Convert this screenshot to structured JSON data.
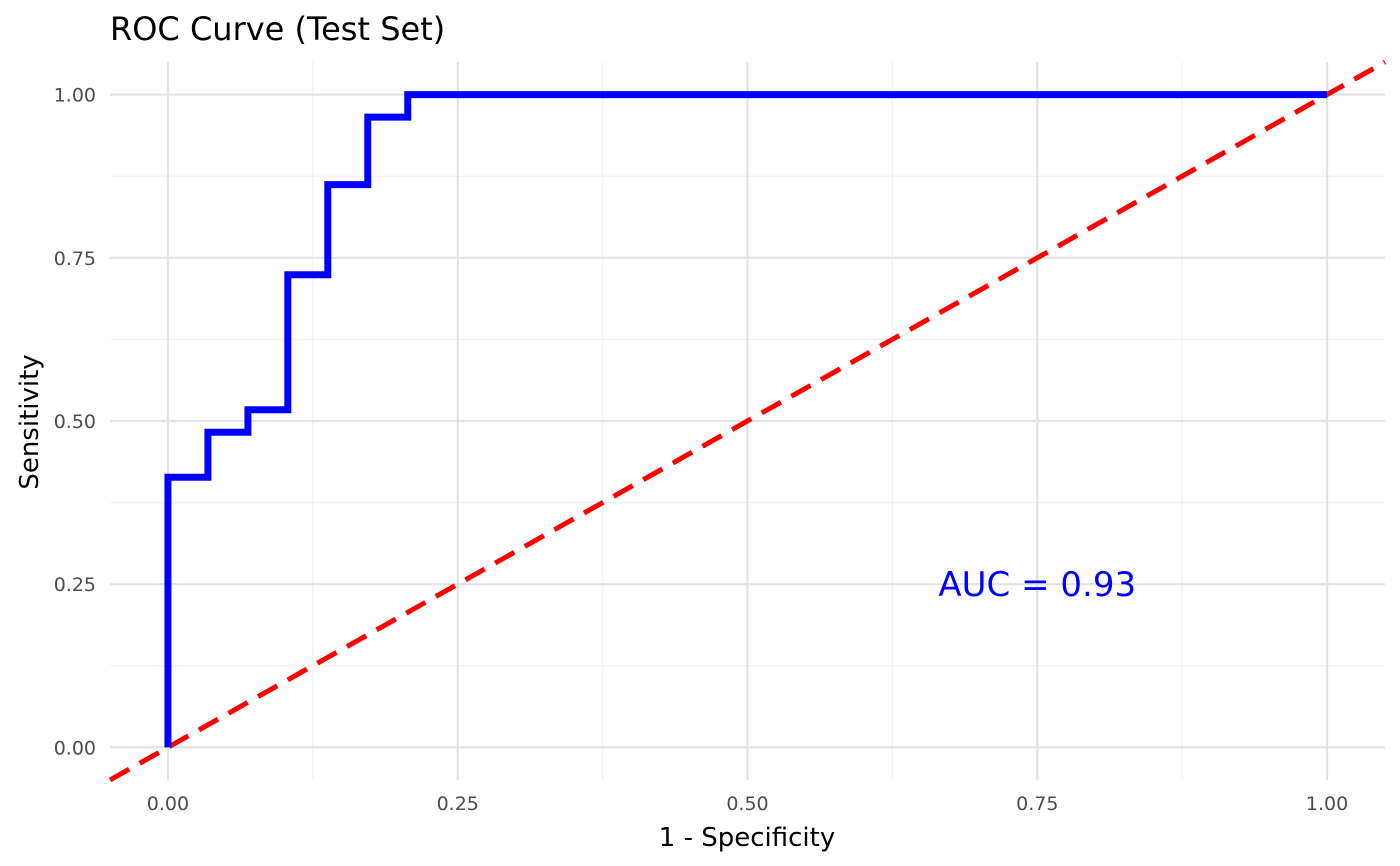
{
  "chart_data": {
    "type": "line",
    "title": "ROC Curve (Test Set)",
    "xlabel": "1 - Specificity",
    "ylabel": "Sensitivity",
    "xlim": [
      -0.05,
      1.05
    ],
    "ylim": [
      -0.05,
      1.05
    ],
    "x_ticks": [
      0,
      0.25,
      0.5,
      0.75,
      1
    ],
    "x_tick_labels": [
      "0.00",
      "0.25",
      "0.50",
      "0.75",
      "1.00"
    ],
    "y_ticks": [
      0,
      0.25,
      0.5,
      0.75,
      1
    ],
    "y_tick_labels": [
      "0.00",
      "0.25",
      "0.50",
      "0.75",
      "1.00"
    ],
    "grid": true,
    "series": [
      {
        "color": "#0000ff",
        "line_style": "solid",
        "step": true,
        "x": [
          0,
          0,
          0.0345,
          0.0345,
          0.069,
          0.069,
          0.1034,
          0.1034,
          0.1379,
          0.1379,
          0.1724,
          0.1724,
          0.2069,
          0.2069,
          1
        ],
        "y": [
          0,
          0.4138,
          0.4138,
          0.4828,
          0.4828,
          0.5172,
          0.5172,
          0.7241,
          0.7241,
          0.8621,
          0.8621,
          0.9655,
          0.9655,
          1,
          1
        ]
      },
      {
        "color": "#ff0000",
        "line_style": "dashed",
        "x": [
          -0.05,
          1.05
        ],
        "y": [
          -0.05,
          1.05
        ]
      }
    ],
    "annotations": [
      {
        "text": "AUC = 0.93",
        "x": 0.75,
        "y": 0.25,
        "color": "#0000ff"
      }
    ]
  }
}
